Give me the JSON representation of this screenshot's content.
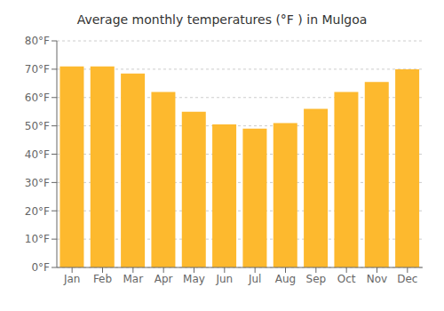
{
  "chart_data": {
    "type": "bar",
    "title": "Average monthly temperatures (°F ) in Mulgoa",
    "categories": [
      "Jan",
      "Feb",
      "Mar",
      "Apr",
      "May",
      "Jun",
      "Jul",
      "Aug",
      "Sep",
      "Oct",
      "Nov",
      "Dec"
    ],
    "values": [
      71.0,
      71.0,
      68.5,
      62.0,
      55.0,
      50.5,
      49.0,
      51.0,
      56.0,
      62.0,
      65.5,
      70.0
    ],
    "color": "#FDB92E",
    "ylim": [
      0,
      80
    ],
    "yticks": [
      {
        "value": 0,
        "label": "0°F"
      },
      {
        "value": 10,
        "label": "10°F"
      },
      {
        "value": 20,
        "label": "20°F"
      },
      {
        "value": 30,
        "label": "30°F"
      },
      {
        "value": 40,
        "label": "40°F"
      },
      {
        "value": 50,
        "label": "50°F"
      },
      {
        "value": 60,
        "label": "60°F"
      },
      {
        "value": 70,
        "label": "70°F"
      },
      {
        "value": 80,
        "label": "80°F"
      }
    ],
    "grid": true
  }
}
